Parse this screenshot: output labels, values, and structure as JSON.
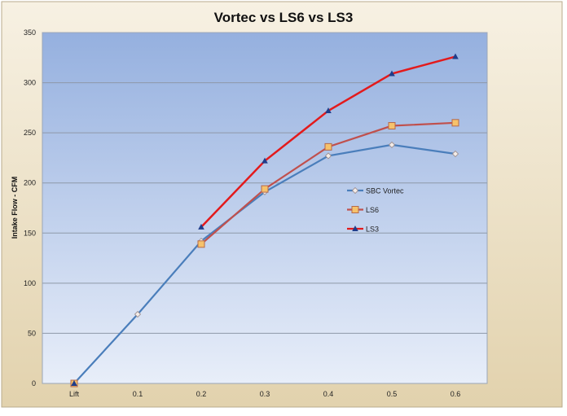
{
  "chart_data": {
    "type": "line",
    "title": "Vortec vs LS6 vs LS3",
    "xlabel": "",
    "ylabel": "Intake Flow - CFM",
    "categories": [
      "Lift",
      "0.1",
      "0.2",
      "0.3",
      "0.4",
      "0.5",
      "0.6"
    ],
    "ylim": [
      0,
      350
    ],
    "yticks": [
      0,
      50,
      100,
      150,
      200,
      250,
      300,
      350
    ],
    "grid": true,
    "legend_placement": "center-right",
    "series": [
      {
        "name": "SBC Vortec",
        "values": [
          0,
          69,
          142,
          191,
          227,
          238,
          229
        ],
        "color": "#4a7ebb",
        "marker": "diamond"
      },
      {
        "name": "LS6",
        "values": [
          0,
          null,
          139,
          194,
          236,
          257,
          260
        ],
        "color": "#c0504d",
        "marker": "square"
      },
      {
        "name": "LS3",
        "values": [
          0,
          null,
          156,
          222,
          272,
          309,
          326
        ],
        "color": "#e31a1c",
        "marker": "triangle"
      }
    ]
  }
}
